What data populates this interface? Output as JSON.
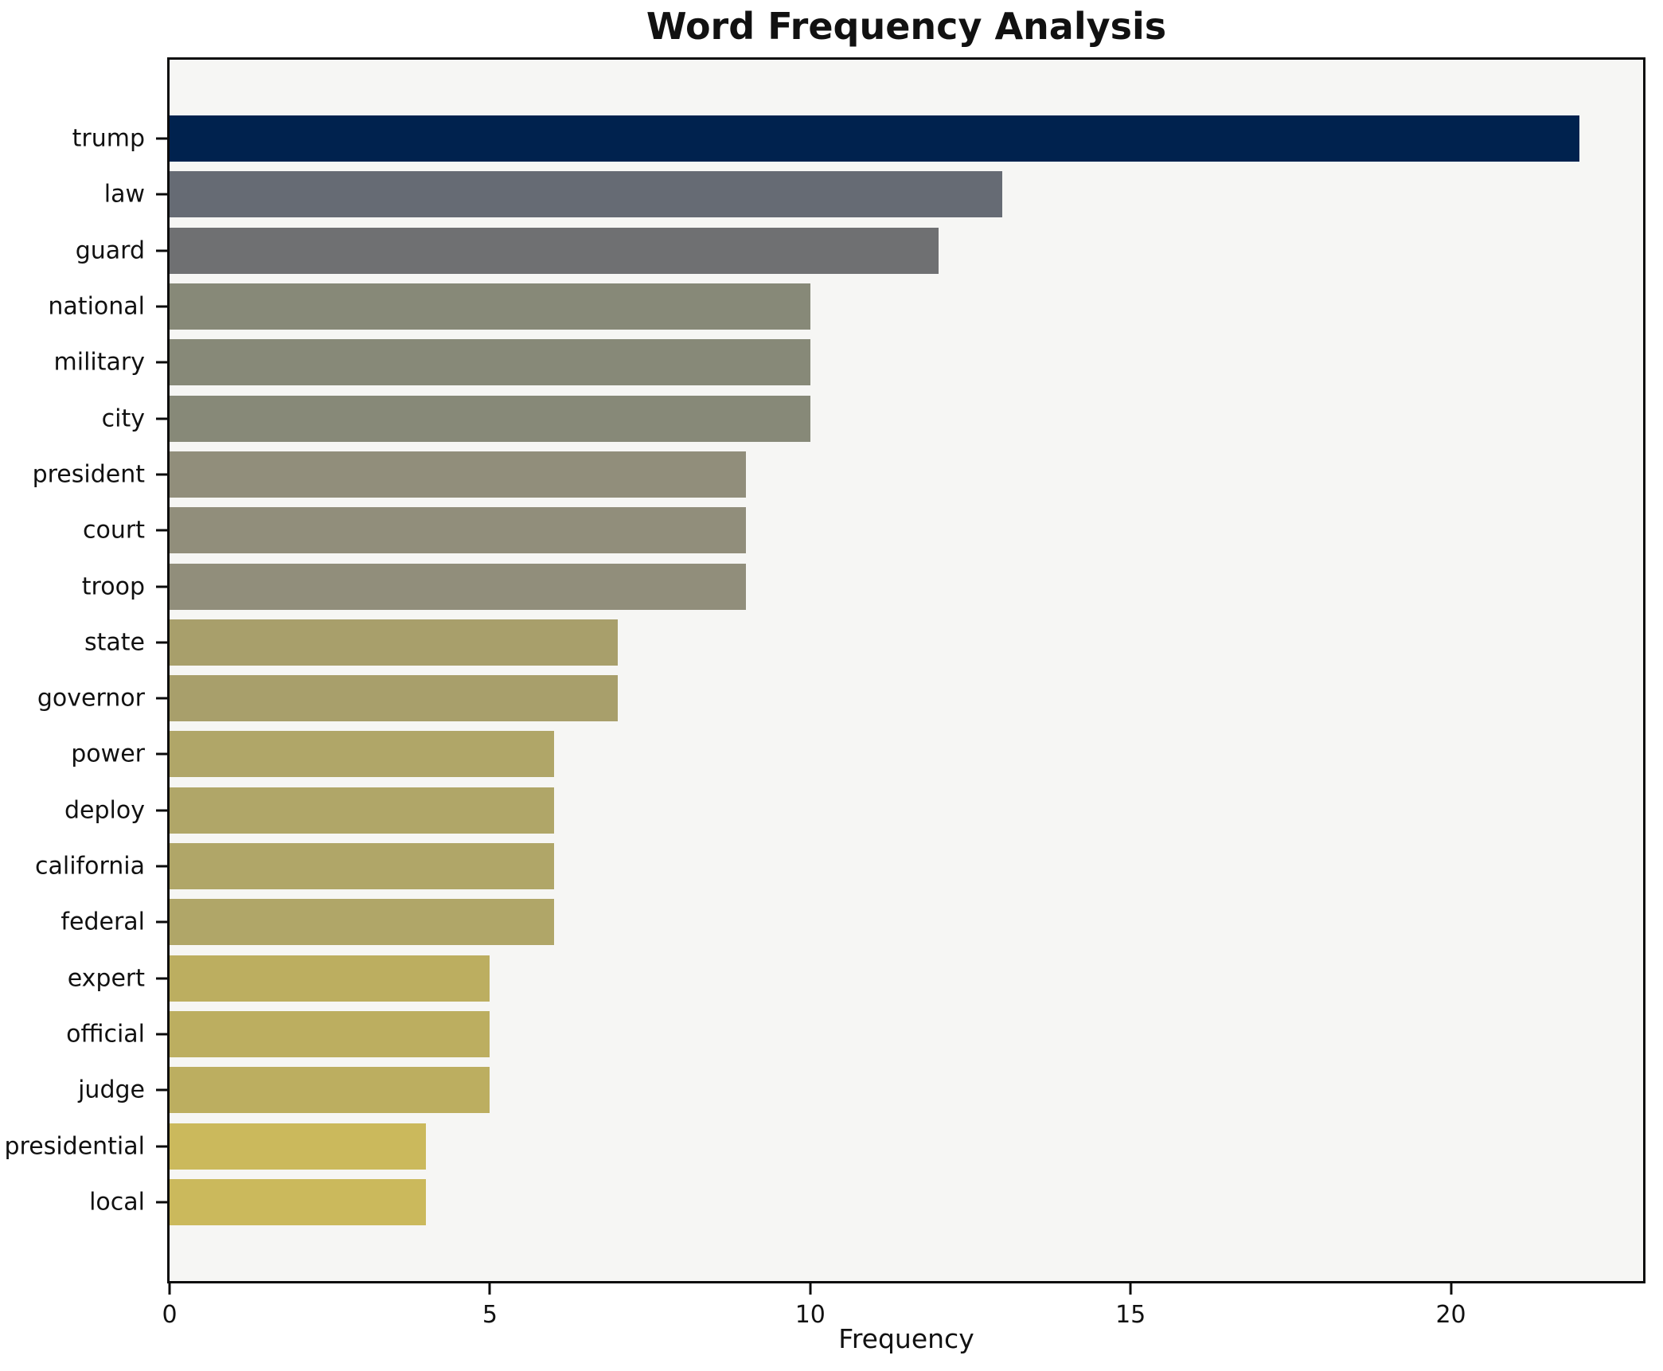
{
  "chart_data": {
    "type": "bar",
    "orientation": "horizontal",
    "title": "Word Frequency Analysis",
    "xlabel": "Frequency",
    "ylabel": "",
    "categories": [
      "trump",
      "law",
      "guard",
      "national",
      "military",
      "city",
      "president",
      "court",
      "troop",
      "state",
      "governor",
      "power",
      "deploy",
      "california",
      "federal",
      "expert",
      "official",
      "judge",
      "presidential",
      "local"
    ],
    "values": [
      22,
      13,
      12,
      10,
      10,
      10,
      9,
      9,
      9,
      7,
      7,
      6,
      6,
      6,
      6,
      5,
      5,
      5,
      4,
      4
    ],
    "bar_colors": [
      "#00224e",
      "#666b74",
      "#6f7072",
      "#878978",
      "#878978",
      "#878978",
      "#918e7b",
      "#918e7b",
      "#918e7b",
      "#a89f6b",
      "#a89f6b",
      "#b0a668",
      "#b0a668",
      "#b0a668",
      "#b0a668",
      "#bcae60",
      "#bcae60",
      "#bcae60",
      "#cbb95c",
      "#cbb95c"
    ],
    "xlim": [
      0,
      23
    ],
    "xticks": [
      0,
      5,
      10,
      15,
      20
    ],
    "grid": false,
    "legend": false,
    "plot_background": "#f6f6f4",
    "figure_background": "#ffffff",
    "axis_color": "#0c0c0c",
    "text_color": "#111111"
  }
}
